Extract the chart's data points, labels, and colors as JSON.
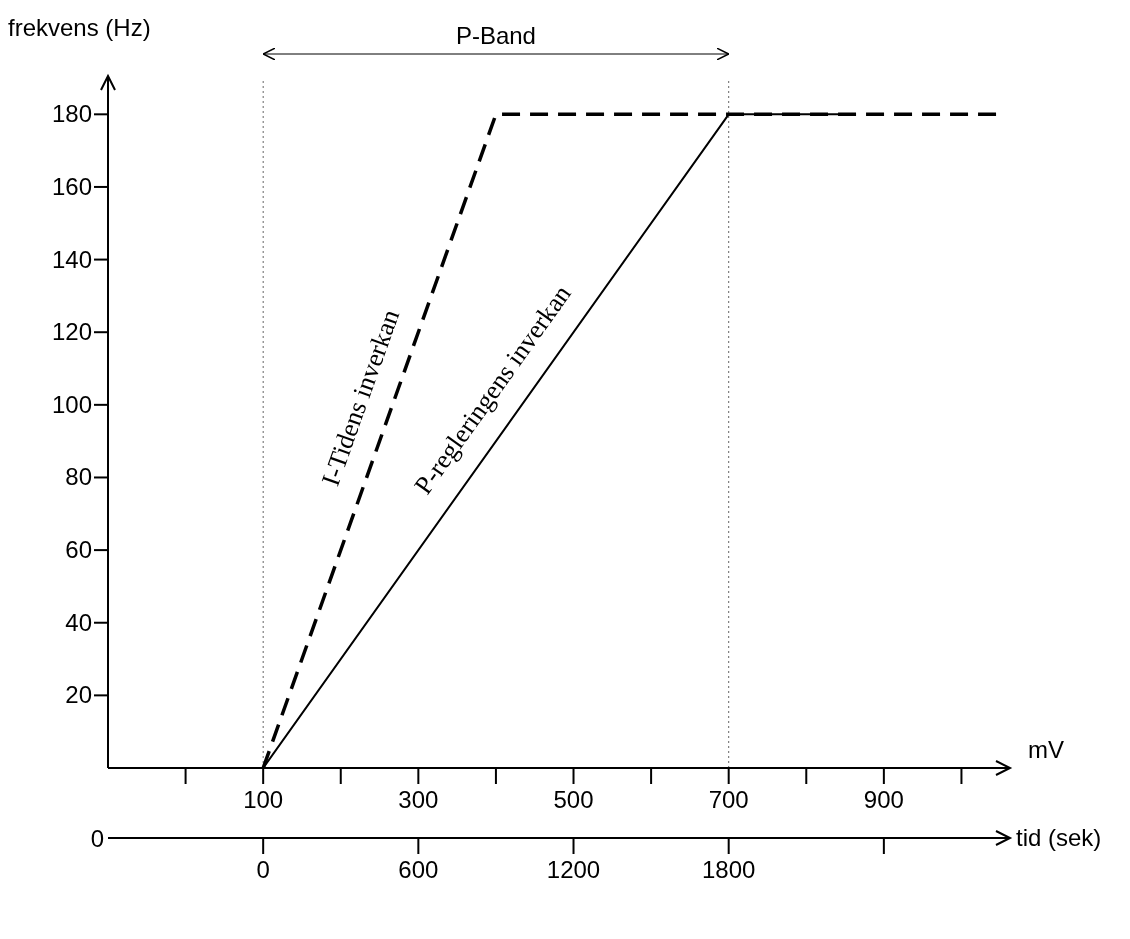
{
  "chart_data": {
    "type": "line",
    "xlabel": "mV",
    "ylabel": "frekvens (Hz)",
    "x2label": "tid (sek)",
    "xlim": [
      -100,
      1060
    ],
    "xticks": [
      {
        "value": 0,
        "label": null
      },
      100,
      {
        "value": 200,
        "label": null
      },
      300,
      {
        "value": 400,
        "label": null
      },
      500,
      {
        "value": 600,
        "label": null
      },
      700,
      {
        "value": 800,
        "label": null
      },
      900,
      {
        "value": 1000,
        "label": null
      }
    ],
    "x2lim": [
      -600,
      2880
    ],
    "x2ticks": [
      0,
      600,
      1200,
      1800,
      {
        "value": 2400,
        "label": null
      }
    ],
    "ylim": [
      0,
      190
    ],
    "yticks": [
      20,
      40,
      60,
      80,
      100,
      120,
      140,
      160,
      180
    ],
    "series": [
      {
        "color": "#000000",
        "line_style": "dashed",
        "x": [
          100,
          400,
          1050
        ],
        "values": [
          0,
          180,
          180
        ]
      },
      {
        "color": "#000000",
        "line_style": "solid",
        "x": [
          100,
          700,
          845
        ],
        "values": [
          0,
          180,
          180
        ]
      }
    ],
    "ref_lines": [
      {
        "axis": "x",
        "value": 100,
        "line_style": "dotted"
      },
      {
        "axis": "x",
        "value": 700,
        "line_style": "dotted"
      }
    ],
    "annotations": [
      "I-Tidens inverkan",
      "P-regleringens inverkan",
      "0",
      "P-Band"
    ],
    "grid": false,
    "legend": false,
    "marker": "none"
  }
}
